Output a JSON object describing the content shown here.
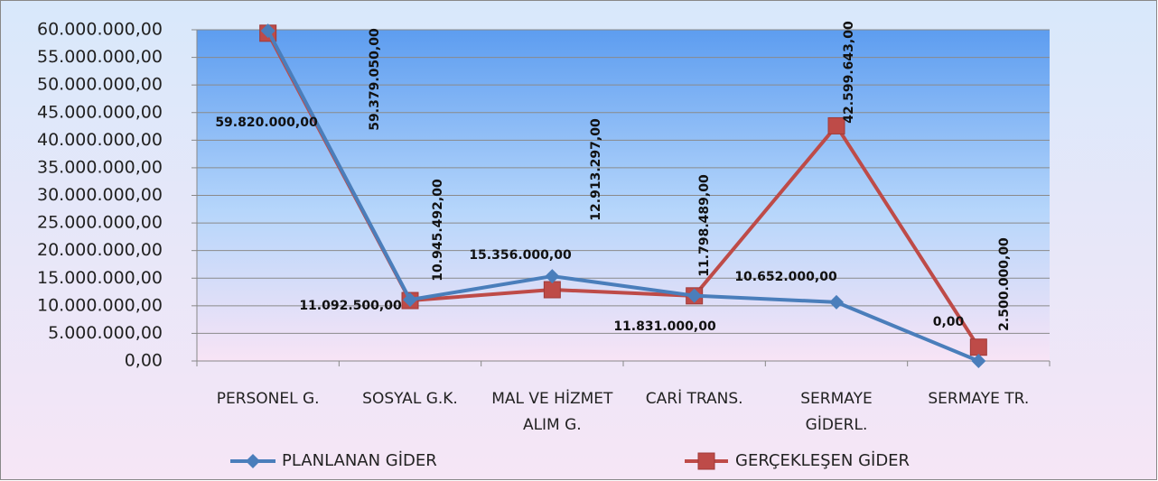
{
  "chart_data": {
    "type": "line",
    "categories": [
      "PERSONEL G.",
      "SOSYAL G.K.",
      "MAL VE HİZMET ALIM G.",
      "CARİ TRANS.",
      "SERMAYE GİDERL.",
      "SERMAYE TR."
    ],
    "series": [
      {
        "name": "PLANLANAN GİDER",
        "color": "#4a7ebb",
        "marker": "diamond",
        "values": [
          59820000,
          11092500,
          15356000,
          11831000,
          10652000,
          0
        ],
        "value_labels": [
          "59.820.000,00",
          "11.092.500,00",
          "15.356.000,00",
          "11.831.000,00",
          "10.652.000,00",
          "0,00"
        ]
      },
      {
        "name": "GERÇEKLEŞEN GİDER",
        "color": "#be4b48",
        "marker": "square",
        "values": [
          59379050,
          10945492,
          12913297,
          11798489,
          42599643,
          2500000
        ],
        "value_labels": [
          "59.379.050,00",
          "10.945.492,00",
          "12.913.297,00",
          "11.798.489,00",
          "42.599.643,00",
          "2.500.000,00"
        ]
      }
    ],
    "ylim": [
      0,
      60000000
    ],
    "yticks": [
      {
        "value": 0,
        "label": "0,00"
      },
      {
        "value": 5000000,
        "label": "5.000.000,00"
      },
      {
        "value": 10000000,
        "label": "10.000.000,00"
      },
      {
        "value": 15000000,
        "label": "15.000.000,00"
      },
      {
        "value": 20000000,
        "label": "20.000.000,00"
      },
      {
        "value": 25000000,
        "label": "25.000.000,00"
      },
      {
        "value": 30000000,
        "label": "30.000.000,00"
      },
      {
        "value": 35000000,
        "label": "35.000.000,00"
      },
      {
        "value": 40000000,
        "label": "40.000.000,00"
      },
      {
        "value": 45000000,
        "label": "45.000.000,00"
      },
      {
        "value": 50000000,
        "label": "50.000.000,00"
      },
      {
        "value": 55000000,
        "label": "55.000.000,00"
      },
      {
        "value": 60000000,
        "label": "60.000.000,00"
      }
    ],
    "grid": true,
    "legend": "bottom"
  }
}
